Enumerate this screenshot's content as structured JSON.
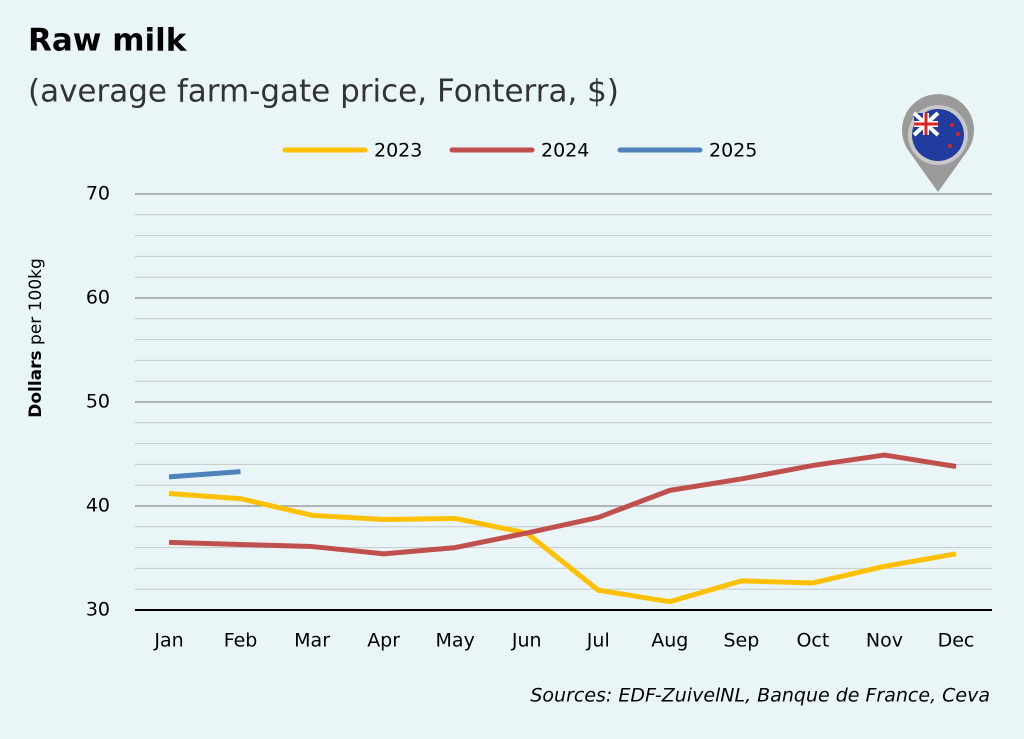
{
  "chart_data": {
    "type": "line",
    "title": "Raw milk",
    "subtitle": "(average farm-gate price, Fonterra, $)",
    "ylabel": {
      "bold": "Dollars",
      "rest": "per 100kg"
    },
    "source": "Sources: EDF-ZuivelNL, Banque de France, Ceva",
    "categories": [
      "Jan",
      "Feb",
      "Mar",
      "Apr",
      "May",
      "Jun",
      "Jul",
      "Aug",
      "Sep",
      "Oct",
      "Nov",
      "Dec"
    ],
    "series": [
      {
        "name": "2023",
        "color": "#ffc000",
        "values": [
          41.2,
          40.7,
          39.1,
          38.7,
          38.8,
          37.4,
          31.9,
          30.8,
          32.8,
          32.6,
          34.2,
          35.4
        ]
      },
      {
        "name": "2024",
        "color": "#c0504d",
        "values": [
          36.5,
          36.3,
          36.1,
          35.4,
          36.0,
          37.4,
          38.9,
          41.5,
          42.6,
          43.9,
          44.9,
          43.8
        ]
      },
      {
        "name": "2025",
        "color": "#4f81bd",
        "values": [
          42.8,
          43.3,
          null,
          null,
          null,
          null,
          null,
          null,
          null,
          null,
          null,
          null
        ]
      }
    ],
    "ylim": [
      30,
      70
    ],
    "yticks": [
      30,
      40,
      50,
      60,
      70
    ],
    "minor_yticks": [
      32,
      34,
      36,
      38,
      42,
      44,
      46,
      48,
      52,
      54,
      56,
      58,
      62,
      64,
      66,
      68
    ],
    "grid": true
  }
}
